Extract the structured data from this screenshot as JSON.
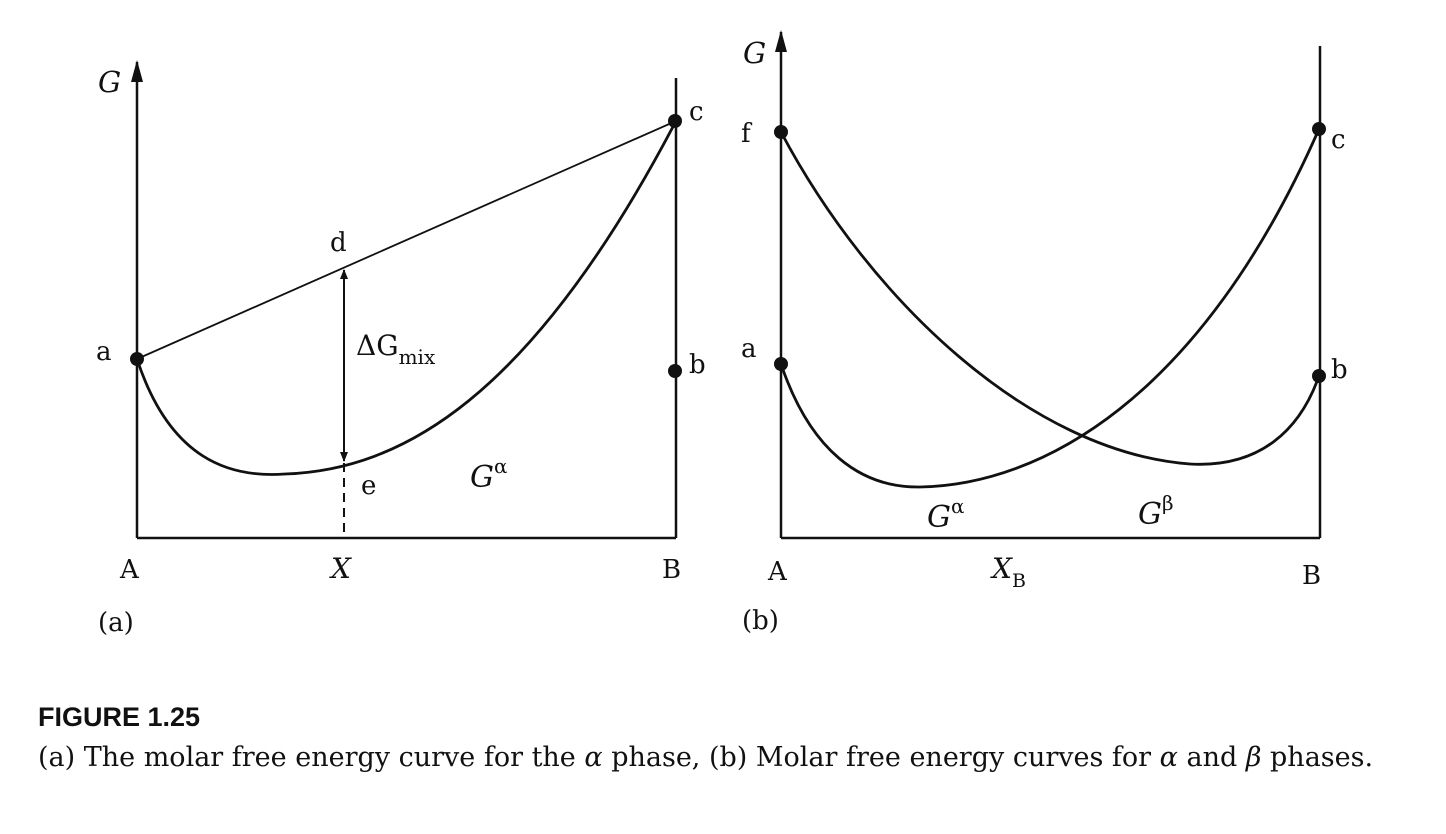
{
  "panel_a": {
    "axis_label": "G",
    "x_left": "A",
    "x_right": "B",
    "x_mid": "X",
    "panel_tag": "(a)",
    "points": {
      "a": "a",
      "b": "b",
      "c": "c",
      "d": "d",
      "e": "e"
    },
    "delta_label": "ΔG",
    "delta_sub": "mix",
    "curve_base": "G",
    "curve_sup": "α"
  },
  "panel_b": {
    "axis_label": "G",
    "x_left": "A",
    "x_right": "B",
    "x_mid_base": "X",
    "x_mid_sub": "B",
    "panel_tag": "(b)",
    "points": {
      "f": "f",
      "a": "a",
      "b": "b",
      "c": "c"
    },
    "alpha_base": "G",
    "alpha_sup": "α",
    "beta_base": "G",
    "beta_sup": "β"
  },
  "caption": {
    "title": "FIGURE 1.25",
    "text_1": "(a) The molar free energy curve for the ",
    "alpha": "α",
    "text_2": " phase, (b) Molar free energy curves for ",
    "text_3": " and ",
    "beta": "β",
    "text_4": " phases."
  }
}
